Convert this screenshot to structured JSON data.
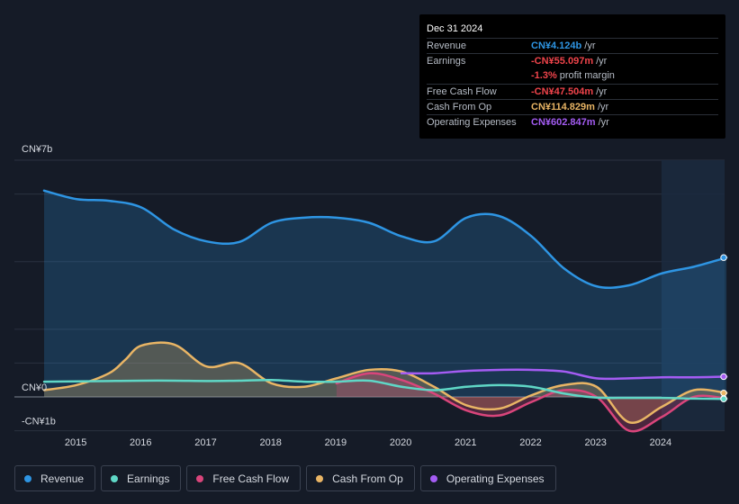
{
  "tooltip": {
    "date": "Dec 31 2024",
    "rows": [
      {
        "label": "Revenue",
        "value": "CN¥4.124b",
        "unit": "/yr",
        "color": "#2e95e3"
      },
      {
        "label": "Earnings",
        "value": "-CN¥55.097m",
        "unit": "/yr",
        "color": "#f0444b"
      },
      {
        "label": "",
        "value": "-1.3%",
        "unit": "profit margin",
        "color": "#f0444b"
      },
      {
        "label": "Free Cash Flow",
        "value": "-CN¥47.504m",
        "unit": "/yr",
        "color": "#f0444b"
      },
      {
        "label": "Cash From Op",
        "value": "CN¥114.829m",
        "unit": "/yr",
        "color": "#e9b565"
      },
      {
        "label": "Operating Expenses",
        "value": "CN¥602.847m",
        "unit": "/yr",
        "color": "#a45cf3"
      }
    ]
  },
  "legend": [
    {
      "label": "Revenue",
      "color": "#2e95e3"
    },
    {
      "label": "Earnings",
      "color": "#5fd7c6"
    },
    {
      "label": "Free Cash Flow",
      "color": "#d9457b"
    },
    {
      "label": "Cash From Op",
      "color": "#e9b565"
    },
    {
      "label": "Operating Expenses",
      "color": "#a45cf3"
    }
  ],
  "chart_data": {
    "type": "line",
    "title": "",
    "xlabel": "",
    "ylabel": "",
    "ylim": [
      -1,
      7
    ],
    "y_tick_labels": [
      "CN¥7b",
      "CN¥0",
      "-CN¥1b"
    ],
    "x_ticks": [
      "2015",
      "2016",
      "2017",
      "2018",
      "2019",
      "2020",
      "2021",
      "2022",
      "2023",
      "2024"
    ],
    "xlim": [
      2014.3,
      2025.0
    ],
    "highlight_from": 2024.0,
    "series": [
      {
        "name": "Revenue",
        "color": "#2e95e3",
        "fill": true,
        "x": [
          2014.5,
          2015.0,
          2015.5,
          2016.0,
          2016.5,
          2017.0,
          2017.5,
          2018.0,
          2018.5,
          2019.0,
          2019.5,
          2020.0,
          2020.5,
          2021.0,
          2021.5,
          2022.0,
          2022.5,
          2023.0,
          2023.5,
          2024.0,
          2024.5,
          2025.0
        ],
        "values": [
          6.1,
          5.85,
          5.8,
          5.6,
          4.95,
          4.6,
          4.58,
          5.15,
          5.3,
          5.3,
          5.15,
          4.75,
          4.6,
          5.3,
          5.35,
          4.75,
          3.8,
          3.27,
          3.3,
          3.65,
          3.85,
          4.12
        ]
      },
      {
        "name": "Earnings",
        "color": "#5fd7c6",
        "fill": false,
        "x": [
          2014.5,
          2015.0,
          2015.5,
          2016.0,
          2016.5,
          2017.0,
          2017.5,
          2018.0,
          2018.5,
          2019.0,
          2019.5,
          2020.0,
          2020.5,
          2021.0,
          2021.5,
          2022.0,
          2022.5,
          2023.0,
          2023.5,
          2024.0,
          2024.5,
          2025.0
        ],
        "values": [
          0.45,
          0.46,
          0.47,
          0.48,
          0.48,
          0.47,
          0.48,
          0.5,
          0.45,
          0.45,
          0.48,
          0.3,
          0.2,
          0.3,
          0.35,
          0.3,
          0.1,
          -0.02,
          -0.03,
          -0.03,
          -0.05,
          -0.06
        ]
      },
      {
        "name": "Free Cash Flow",
        "color": "#d9457b",
        "fill": true,
        "x": [
          2019.0,
          2019.5,
          2020.0,
          2020.5,
          2021.0,
          2021.5,
          2022.0,
          2022.5,
          2023.0,
          2023.5,
          2024.0,
          2024.5,
          2025.0
        ],
        "values": [
          0.4,
          0.7,
          0.5,
          0.1,
          -0.4,
          -0.55,
          -0.15,
          0.2,
          0.0,
          -1.0,
          -0.6,
          0.0,
          -0.05
        ]
      },
      {
        "name": "Cash From Op",
        "color": "#e9b565",
        "fill": true,
        "x": [
          2014.5,
          2015.0,
          2015.5,
          2015.75,
          2016.0,
          2016.5,
          2017.0,
          2017.5,
          2018.0,
          2018.5,
          2019.0,
          2019.5,
          2020.0,
          2020.5,
          2021.0,
          2021.5,
          2022.0,
          2022.5,
          2023.0,
          2023.5,
          2024.0,
          2024.5,
          2025.0
        ],
        "values": [
          0.2,
          0.35,
          0.7,
          1.1,
          1.52,
          1.55,
          0.9,
          1.0,
          0.4,
          0.3,
          0.55,
          0.8,
          0.75,
          0.3,
          -0.25,
          -0.35,
          0.05,
          0.35,
          0.3,
          -0.75,
          -0.3,
          0.2,
          0.115
        ]
      },
      {
        "name": "Operating Expenses",
        "color": "#a45cf3",
        "fill": false,
        "x": [
          2020.0,
          2020.5,
          2021.0,
          2021.5,
          2022.0,
          2022.5,
          2023.0,
          2023.5,
          2024.0,
          2024.5,
          2025.0
        ],
        "values": [
          0.7,
          0.7,
          0.77,
          0.8,
          0.8,
          0.75,
          0.55,
          0.55,
          0.58,
          0.58,
          0.6
        ]
      }
    ]
  }
}
